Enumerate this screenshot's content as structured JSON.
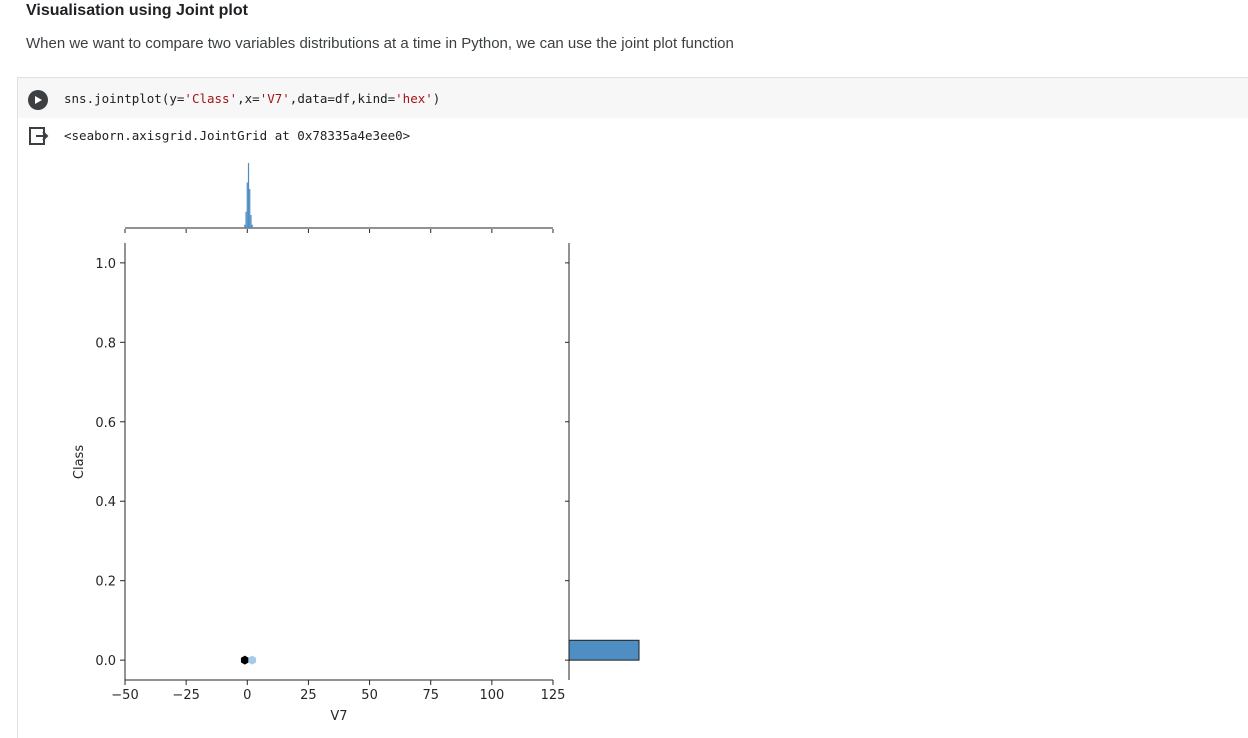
{
  "heading": "Visualisation using Joint plot",
  "description": "When we want to compare two variables distributions at a time in Python, we can use the joint plot function",
  "cell": {
    "code_prefix": "sns.jointplot(y=",
    "code_arg_y": "'Class'",
    "code_mid": ",x=",
    "code_arg_x": "'V7'",
    "code_mid2": ",data=df,kind=",
    "code_arg_kind": "'hex'",
    "code_suffix": ")",
    "output_text": "<seaborn.axisgrid.JointGrid at 0x78335a4e3ee0>"
  },
  "chart_data": {
    "type": "hexbin",
    "xlabel": "V7",
    "ylabel": "Class",
    "xlim": [
      -50,
      125
    ],
    "ylim": [
      -0.05,
      1.05
    ],
    "xticks": [
      -50,
      -25,
      0,
      25,
      50,
      75,
      100,
      125
    ],
    "xtick_labels": [
      "−50",
      "−25",
      "0",
      "25",
      "50",
      "75",
      "100",
      "125"
    ],
    "yticks": [
      0.0,
      0.2,
      0.4,
      0.6,
      0.8,
      1.0
    ],
    "ytick_labels": [
      "0.0",
      "0.2",
      "0.4",
      "0.6",
      "0.8",
      "1.0"
    ],
    "hexbins": [
      {
        "x": -1,
        "y": 0.0,
        "density": "high",
        "color": "#000000"
      },
      {
        "x": 2,
        "y": 0.0,
        "density": "low",
        "color": "#a6cbe8"
      }
    ],
    "marginal_x": {
      "centers": [
        -1,
        -0.5,
        0,
        0.5,
        1,
        1.5,
        2
      ],
      "heights": [
        0.05,
        0.25,
        0.7,
        1.0,
        0.6,
        0.2,
        0.05
      ]
    },
    "marginal_y": {
      "bins": [
        {
          "from": 0.0,
          "to": 0.05,
          "relative_count": 1.0
        }
      ]
    },
    "colors": {
      "bar_fill": "#4f8ec3",
      "bar_edge": "#1f1f1f"
    }
  }
}
